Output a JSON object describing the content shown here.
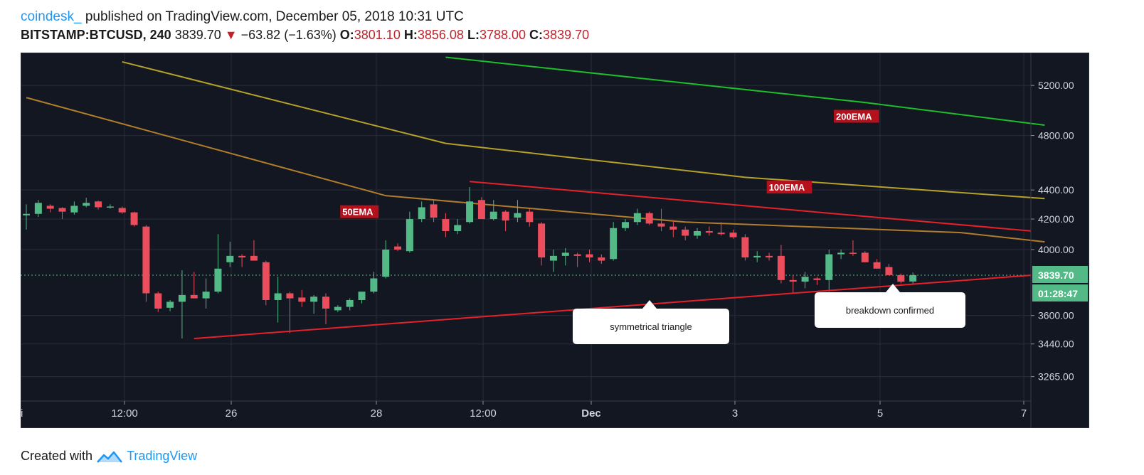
{
  "header": {
    "author": "coindesk_",
    "published": "published on TradingView.com, December 05, 2018 10:31 UTC",
    "symbol": "BITSTAMP:BTCUSD, 240",
    "last": "3839.70",
    "change": "−63.82 (−1.63%)",
    "o_label": "O:",
    "o_value": "3801.10",
    "h_label": "H:",
    "h_value": "3856.08",
    "l_label": "L:",
    "l_value": "3788.00",
    "c_label": "C:",
    "c_value": "3839.70"
  },
  "footer": {
    "created_with": "Created with",
    "brand": "TradingView"
  },
  "colors": {
    "background": "#131722",
    "up": "#53b987",
    "down": "#eb4d5c",
    "ema50": "#b07d2a",
    "ema100": "#b5a227",
    "ema200": "#1dbf2a",
    "trendline": "#e8202a",
    "label_bg": "#b5111d"
  },
  "chart_data": {
    "type": "candlestick",
    "symbol": "BITSTAMP:BTCUSD",
    "interval": "240",
    "scale": "log",
    "ylim": [
      3140,
      5480
    ],
    "price_ticks": [
      "5200.00",
      "4800.00",
      "4400.00",
      "4200.00",
      "4000.00",
      "3600.00",
      "3440.00",
      "3265.00"
    ],
    "time_ticks": [
      "12:00",
      "26",
      "28",
      "12:00",
      "Dec",
      "3",
      "5",
      "7"
    ],
    "last_price_label": "3839.70",
    "countdown_label": "01:28:47",
    "candles": [
      {
        "o": 4225,
        "h": 4300,
        "l": 4130,
        "c": 4235
      },
      {
        "o": 4235,
        "h": 4330,
        "l": 4215,
        "c": 4310
      },
      {
        "o": 4290,
        "h": 4300,
        "l": 4245,
        "c": 4270
      },
      {
        "o": 4275,
        "h": 4280,
        "l": 4200,
        "c": 4250
      },
      {
        "o": 4245,
        "h": 4320,
        "l": 4230,
        "c": 4290
      },
      {
        "o": 4290,
        "h": 4345,
        "l": 4280,
        "c": 4310
      },
      {
        "o": 4320,
        "h": 4325,
        "l": 4265,
        "c": 4280
      },
      {
        "o": 4280,
        "h": 4300,
        "l": 4270,
        "c": 4285
      },
      {
        "o": 4275,
        "h": 4285,
        "l": 4235,
        "c": 4245
      },
      {
        "o": 4245,
        "h": 4250,
        "l": 4150,
        "c": 4160
      },
      {
        "o": 4150,
        "h": 4160,
        "l": 3680,
        "c": 3730
      },
      {
        "o": 3730,
        "h": 3740,
        "l": 3620,
        "c": 3640
      },
      {
        "o": 3645,
        "h": 3690,
        "l": 3625,
        "c": 3680
      },
      {
        "o": 3680,
        "h": 3870,
        "l": 3470,
        "c": 3720
      },
      {
        "o": 3720,
        "h": 3860,
        "l": 3700,
        "c": 3700
      },
      {
        "o": 3700,
        "h": 3820,
        "l": 3640,
        "c": 3740
      },
      {
        "o": 3740,
        "h": 4100,
        "l": 3730,
        "c": 3880
      },
      {
        "o": 3920,
        "h": 4050,
        "l": 3890,
        "c": 3960
      },
      {
        "o": 3960,
        "h": 3970,
        "l": 3890,
        "c": 3950
      },
      {
        "o": 3960,
        "h": 4060,
        "l": 3930,
        "c": 3930
      },
      {
        "o": 3920,
        "h": 3930,
        "l": 3660,
        "c": 3690
      },
      {
        "o": 3690,
        "h": 3830,
        "l": 3560,
        "c": 3730
      },
      {
        "o": 3730,
        "h": 3740,
        "l": 3500,
        "c": 3700
      },
      {
        "o": 3705,
        "h": 3750,
        "l": 3650,
        "c": 3680
      },
      {
        "o": 3680,
        "h": 3720,
        "l": 3610,
        "c": 3710
      },
      {
        "o": 3710,
        "h": 3730,
        "l": 3550,
        "c": 3640
      },
      {
        "o": 3630,
        "h": 3660,
        "l": 3620,
        "c": 3650
      },
      {
        "o": 3650,
        "h": 3700,
        "l": 3630,
        "c": 3690
      },
      {
        "o": 3690,
        "h": 3740,
        "l": 3670,
        "c": 3740
      },
      {
        "o": 3740,
        "h": 3860,
        "l": 3730,
        "c": 3820
      },
      {
        "o": 3830,
        "h": 4060,
        "l": 3820,
        "c": 4000
      },
      {
        "o": 4020,
        "h": 4040,
        "l": 3990,
        "c": 4000
      },
      {
        "o": 3990,
        "h": 4250,
        "l": 3980,
        "c": 4200
      },
      {
        "o": 4200,
        "h": 4320,
        "l": 4180,
        "c": 4280
      },
      {
        "o": 4300,
        "h": 4330,
        "l": 4180,
        "c": 4210
      },
      {
        "o": 4200,
        "h": 4240,
        "l": 4080,
        "c": 4120
      },
      {
        "o": 4120,
        "h": 4200,
        "l": 4100,
        "c": 4160
      },
      {
        "o": 4180,
        "h": 4420,
        "l": 4170,
        "c": 4320
      },
      {
        "o": 4330,
        "h": 4350,
        "l": 4200,
        "c": 4200
      },
      {
        "o": 4200,
        "h": 4330,
        "l": 4190,
        "c": 4250
      },
      {
        "o": 4250,
        "h": 4260,
        "l": 4120,
        "c": 4190
      },
      {
        "o": 4210,
        "h": 4330,
        "l": 4180,
        "c": 4240
      },
      {
        "o": 4250,
        "h": 4270,
        "l": 4150,
        "c": 4180
      },
      {
        "o": 4170,
        "h": 4180,
        "l": 3900,
        "c": 3950
      },
      {
        "o": 3930,
        "h": 4000,
        "l": 3860,
        "c": 3960
      },
      {
        "o": 3960,
        "h": 4010,
        "l": 3900,
        "c": 3980
      },
      {
        "o": 3970,
        "h": 3980,
        "l": 3890,
        "c": 3960
      },
      {
        "o": 3970,
        "h": 4000,
        "l": 3920,
        "c": 3950
      },
      {
        "o": 3950,
        "h": 3970,
        "l": 3910,
        "c": 3930
      },
      {
        "o": 3940,
        "h": 4180,
        "l": 3930,
        "c": 4140
      },
      {
        "o": 4140,
        "h": 4200,
        "l": 4120,
        "c": 4180
      },
      {
        "o": 4180,
        "h": 4270,
        "l": 4160,
        "c": 4240
      },
      {
        "o": 4240,
        "h": 4250,
        "l": 4160,
        "c": 4170
      },
      {
        "o": 4170,
        "h": 4270,
        "l": 4120,
        "c": 4150
      },
      {
        "o": 4150,
        "h": 4190,
        "l": 4080,
        "c": 4130
      },
      {
        "o": 4130,
        "h": 4150,
        "l": 4060,
        "c": 4090
      },
      {
        "o": 4090,
        "h": 4140,
        "l": 4070,
        "c": 4120
      },
      {
        "o": 4120,
        "h": 4150,
        "l": 4090,
        "c": 4110
      },
      {
        "o": 4110,
        "h": 4180,
        "l": 4090,
        "c": 4100
      },
      {
        "o": 4110,
        "h": 4130,
        "l": 4070,
        "c": 4080
      },
      {
        "o": 4080,
        "h": 4100,
        "l": 3930,
        "c": 3950
      },
      {
        "o": 3950,
        "h": 3990,
        "l": 3920,
        "c": 3960
      },
      {
        "o": 3960,
        "h": 3980,
        "l": 3930,
        "c": 3950
      },
      {
        "o": 3960,
        "h": 4030,
        "l": 3790,
        "c": 3810
      },
      {
        "o": 3810,
        "h": 3840,
        "l": 3730,
        "c": 3800
      },
      {
        "o": 3800,
        "h": 3860,
        "l": 3760,
        "c": 3830
      },
      {
        "o": 3820,
        "h": 3830,
        "l": 3780,
        "c": 3810
      },
      {
        "o": 3810,
        "h": 4000,
        "l": 3740,
        "c": 3970
      },
      {
        "o": 3970,
        "h": 4000,
        "l": 3940,
        "c": 3980
      },
      {
        "o": 3980,
        "h": 4060,
        "l": 3960,
        "c": 3975
      },
      {
        "o": 3980,
        "h": 3990,
        "l": 3920,
        "c": 3920
      },
      {
        "o": 3920,
        "h": 3940,
        "l": 3880,
        "c": 3880
      },
      {
        "o": 3890,
        "h": 3910,
        "l": 3840,
        "c": 3840
      },
      {
        "o": 3840,
        "h": 3850,
        "l": 3790,
        "c": 3800
      },
      {
        "o": 3801.1,
        "h": 3856.08,
        "l": 3788.0,
        "c": 3839.7
      }
    ],
    "ema50": [
      [
        0,
        5100
      ],
      [
        30,
        4360
      ],
      [
        55,
        4180
      ],
      [
        78,
        4110
      ],
      [
        85,
        4050
      ]
    ],
    "ema100": [
      [
        8,
        5400
      ],
      [
        35,
        4740
      ],
      [
        60,
        4490
      ],
      [
        85,
        4340
      ]
    ],
    "ema200": [
      [
        35,
        5440
      ],
      [
        70,
        5060
      ],
      [
        85,
        4880
      ]
    ],
    "trendlines": [
      {
        "name": "upper",
        "points": [
          [
            37,
            4460
          ],
          [
            100,
            4010
          ]
        ]
      },
      {
        "name": "lower",
        "points": [
          [
            14,
            3470
          ],
          [
            100,
            3930
          ]
        ]
      }
    ],
    "annotations": [
      {
        "text": "200EMA",
        "kind": "line-label"
      },
      {
        "text": "100EMA",
        "kind": "line-label"
      },
      {
        "text": "50EMA",
        "kind": "line-label"
      },
      {
        "text": "symmetrical triangle",
        "kind": "callout"
      },
      {
        "text": "breakdown confirmed",
        "kind": "callout"
      }
    ]
  }
}
